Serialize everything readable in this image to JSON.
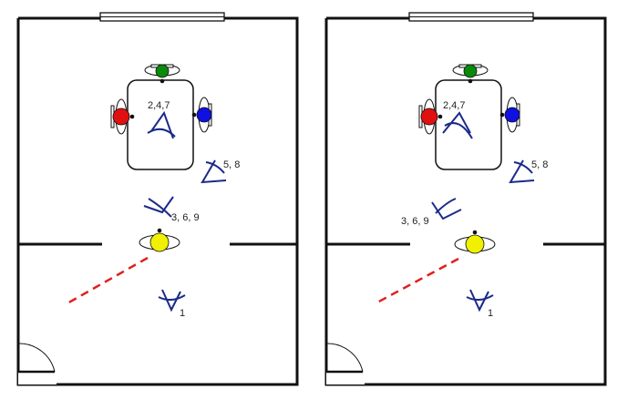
{
  "panels": [
    {
      "id": "left",
      "labels": {
        "cameras_table": "2,4,7",
        "cameras_right": "5, 8",
        "cameras_middle": "3, 6, 9",
        "cameras_bottom": "1"
      }
    },
    {
      "id": "right",
      "labels": {
        "cameras_table": "2,4,7",
        "cameras_right": "5, 8",
        "cameras_middle": "3, 6, 9",
        "cameras_bottom": "1"
      }
    }
  ],
  "colors": {
    "wall": "#111111",
    "camera": "#1a2a8a",
    "sightline": "#e02020",
    "person_top": "#0a8a0a",
    "person_left": "#e01010",
    "person_right": "#1010e0",
    "person_center": "#f0f000"
  }
}
